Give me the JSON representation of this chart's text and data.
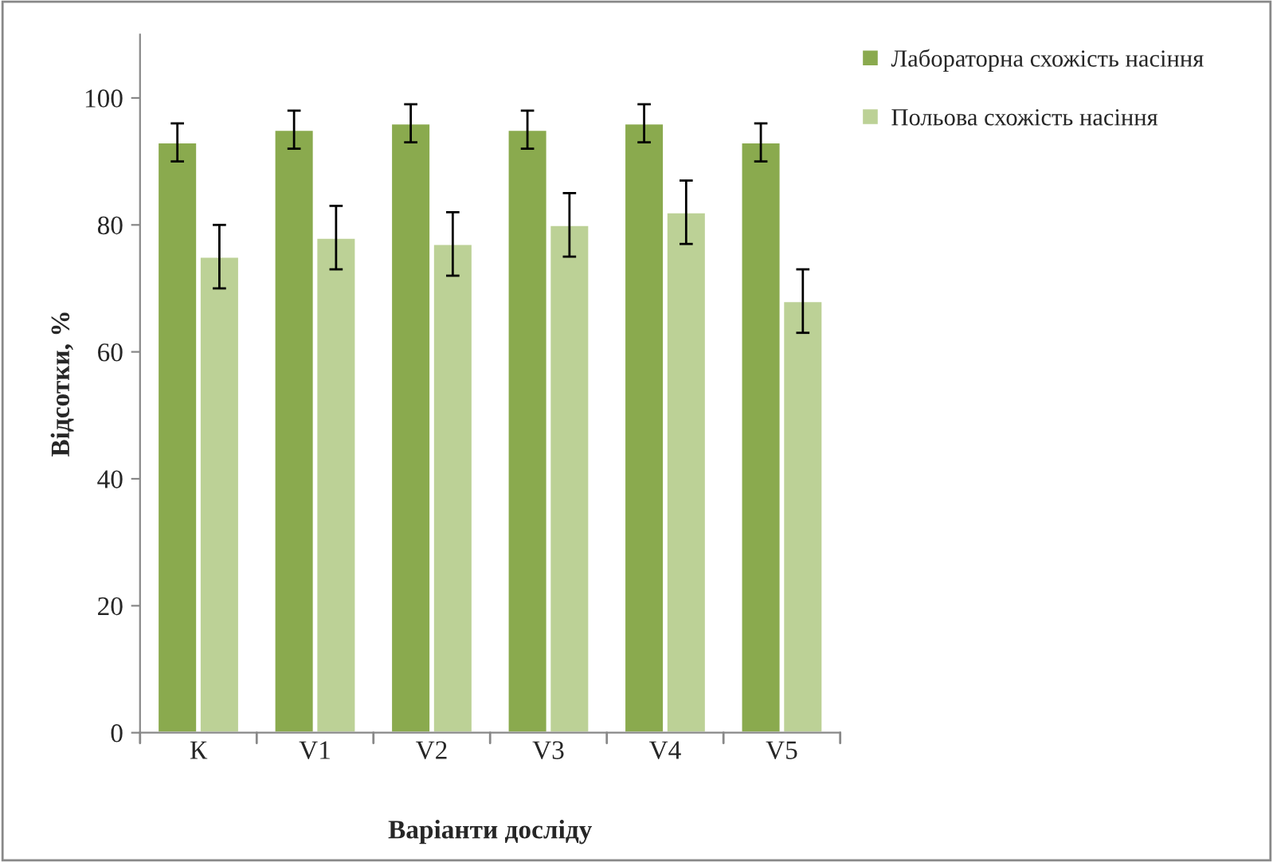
{
  "chart_data": {
    "type": "bar",
    "xlabel": "Варіанти досліду",
    "ylabel": "Відсотки, %",
    "categories": [
      "К",
      "V1",
      "V2",
      "V3",
      "V4",
      "V5"
    ],
    "series": [
      {
        "name": "Лабораторна схожість насіння",
        "color": "#8aaa4e",
        "values": [
          93,
          95,
          96,
          95,
          96,
          93
        ],
        "errors": [
          3,
          3,
          3,
          3,
          3,
          3
        ]
      },
      {
        "name": "Польова схожість насіння",
        "color": "#bcd196",
        "values": [
          75,
          78,
          77,
          80,
          82,
          68
        ],
        "errors": [
          5,
          5,
          5,
          5,
          5,
          5
        ]
      }
    ],
    "ylim": [
      0,
      110
    ],
    "yticks": [
      0,
      20,
      40,
      60,
      80,
      100
    ],
    "grid": false,
    "legend": "top right"
  }
}
